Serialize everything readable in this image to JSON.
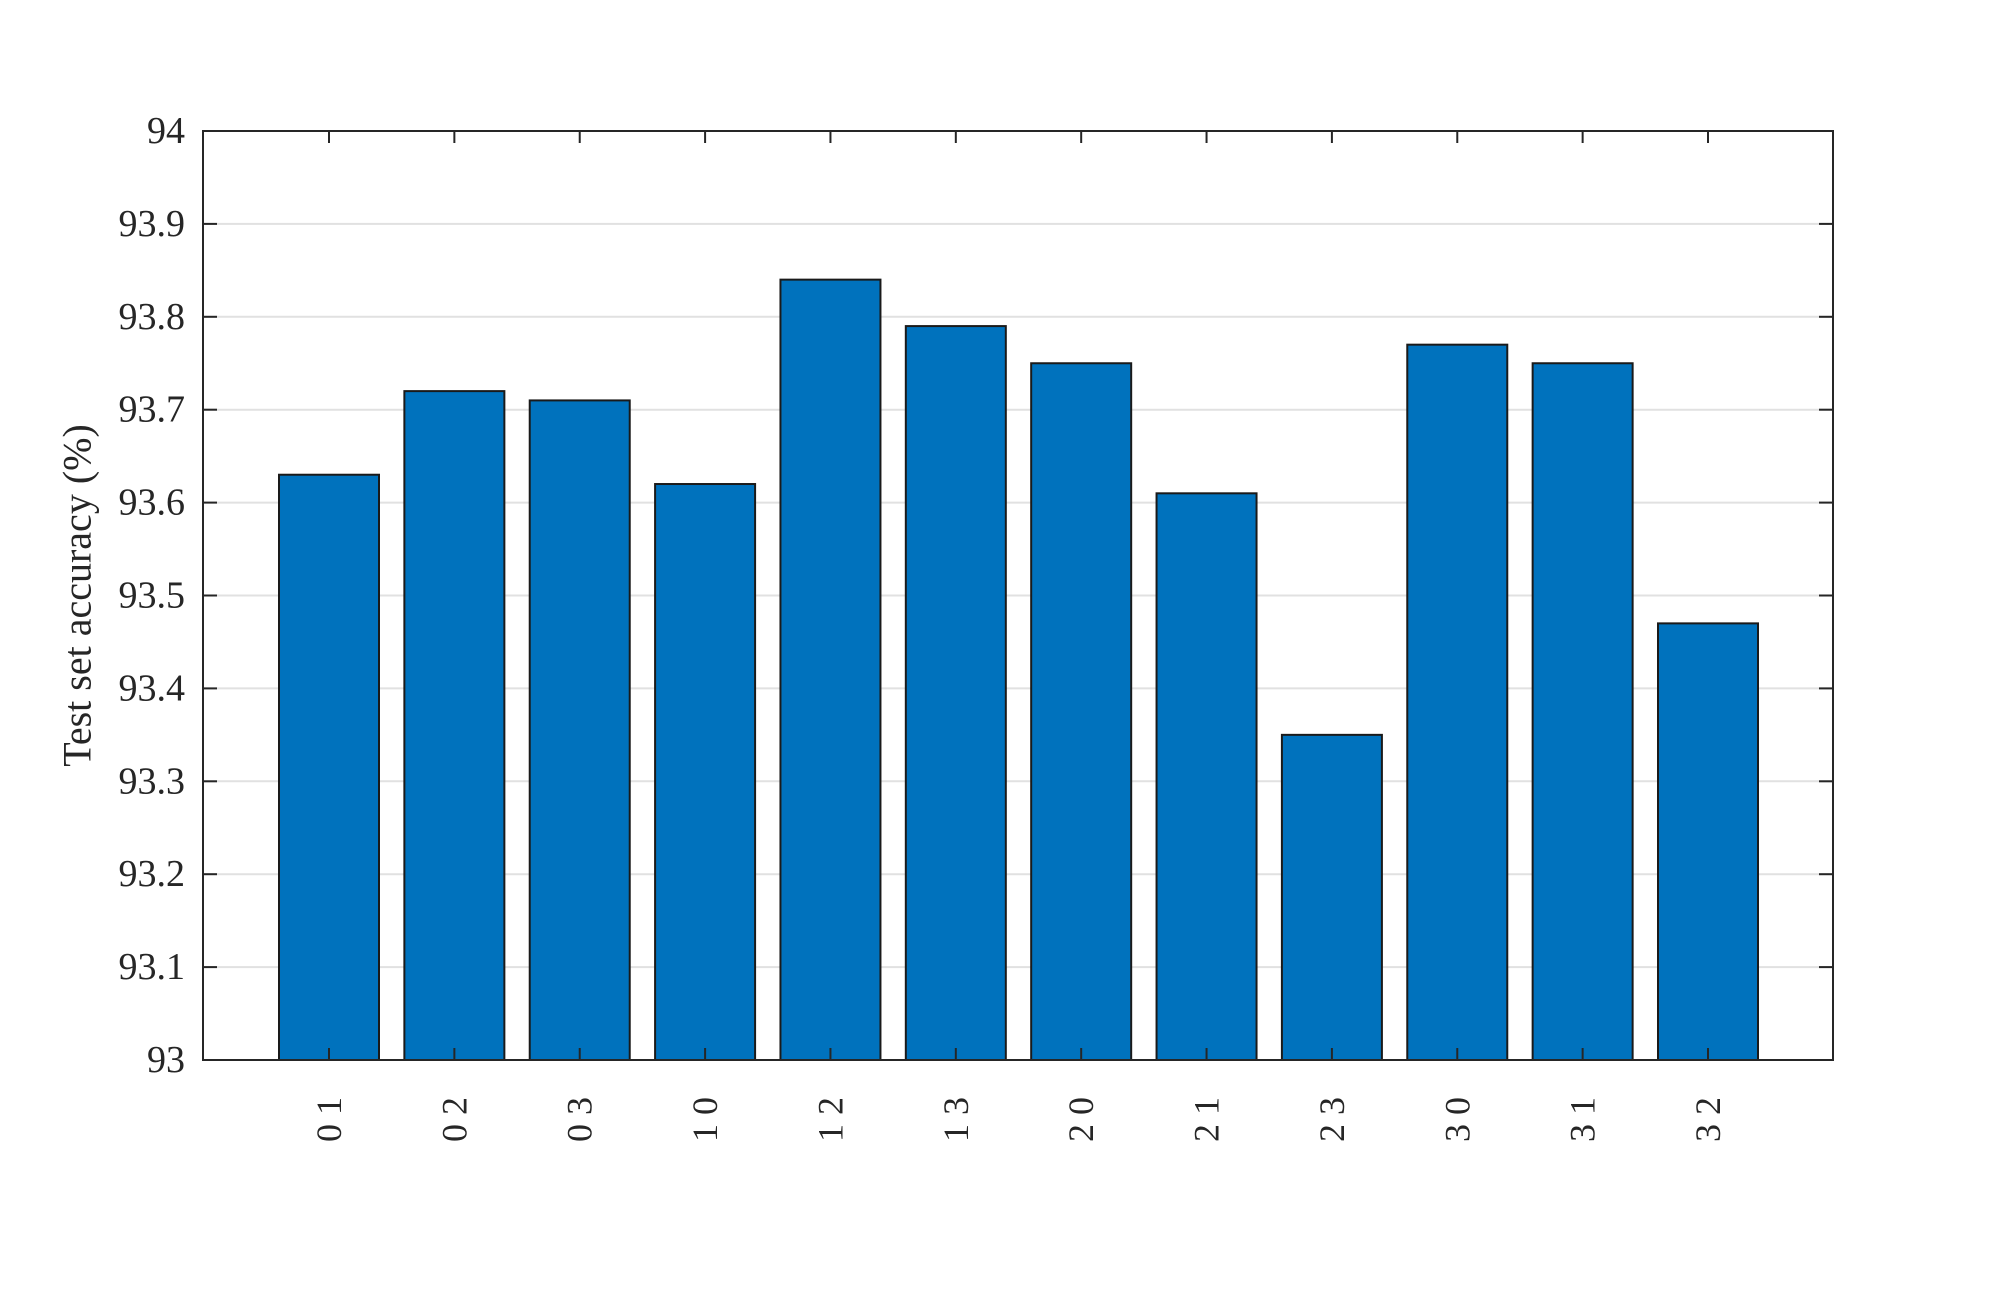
{
  "chart_data": {
    "type": "bar",
    "title": "",
    "xlabel": "",
    "ylabel": "Test set accuracy (%)",
    "ylim": [
      93,
      94
    ],
    "yticks": [
      93,
      93.1,
      93.2,
      93.3,
      93.4,
      93.5,
      93.6,
      93.7,
      93.8,
      93.9,
      94
    ],
    "ytick_labels": [
      "93",
      "93.1",
      "93.2",
      "93.3",
      "93.4",
      "93.5",
      "93.6",
      "93.7",
      "93.8",
      "93.9",
      "94"
    ],
    "categories": [
      "0 1",
      "0 2",
      "0 3",
      "1 0",
      "1 2",
      "1 3",
      "2 0",
      "2 1",
      "2 3",
      "3 0",
      "3 1",
      "3 2"
    ],
    "values": [
      93.63,
      93.72,
      93.71,
      93.62,
      93.84,
      93.79,
      93.75,
      93.61,
      93.35,
      93.77,
      93.75,
      93.47
    ],
    "grid": "horizontal",
    "legend": "none",
    "colors": {
      "bar_fill": "#0072bd",
      "bar_edge": "#1a1a1a",
      "grid": "#e1e1e1",
      "axis": "#262626"
    }
  }
}
